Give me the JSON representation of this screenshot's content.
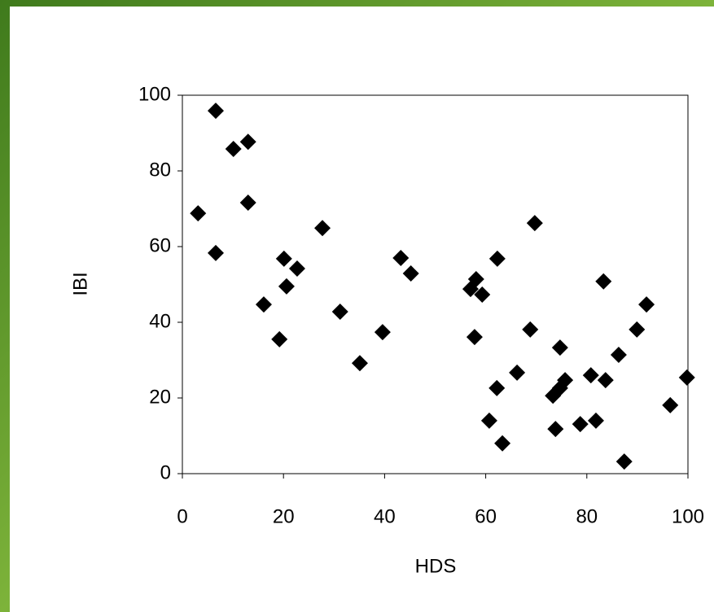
{
  "chart_data": {
    "type": "scatter",
    "x_label": "HDS",
    "y_label": "IBI",
    "x": [
      3.1,
      6.6,
      6.6,
      10.1,
      13.0,
      13.0,
      16.1,
      19.2,
      20.1,
      20.6,
      22.7,
      27.7,
      31.2,
      35.1,
      39.6,
      43.2,
      45.2,
      57.0,
      58.1,
      57.8,
      59.3,
      62.3,
      62.2,
      60.7,
      63.3,
      66.2,
      69.7,
      68.8,
      73.3,
      73.8,
      74.7,
      74.7,
      75.7,
      78.7,
      80.8,
      81.8,
      83.3,
      83.7,
      86.3,
      87.4,
      89.9,
      91.8,
      96.5,
      99.8
    ],
    "values": [
      68.8,
      95.9,
      58.3,
      85.8,
      87.7,
      71.6,
      44.7,
      35.5,
      56.8,
      49.5,
      54.2,
      64.9,
      42.8,
      29.2,
      37.4,
      57.0,
      52.9,
      48.8,
      51.4,
      36.1,
      47.3,
      56.8,
      22.6,
      14.0,
      8.0,
      26.7,
      66.2,
      38.1,
      20.6,
      11.8,
      33.3,
      22.6,
      24.7,
      13.1,
      26.0,
      14.0,
      50.8,
      24.7,
      31.4,
      3.2,
      38.1,
      44.7,
      18.1,
      25.4
    ],
    "color": "#000000",
    "xlim": [
      0,
      100
    ],
    "xticks": [
      0,
      20,
      40,
      60,
      80,
      100
    ],
    "ylim": [
      0,
      100
    ],
    "yticks": [
      0,
      20,
      40,
      60,
      80,
      100
    ],
    "grid": false
  }
}
